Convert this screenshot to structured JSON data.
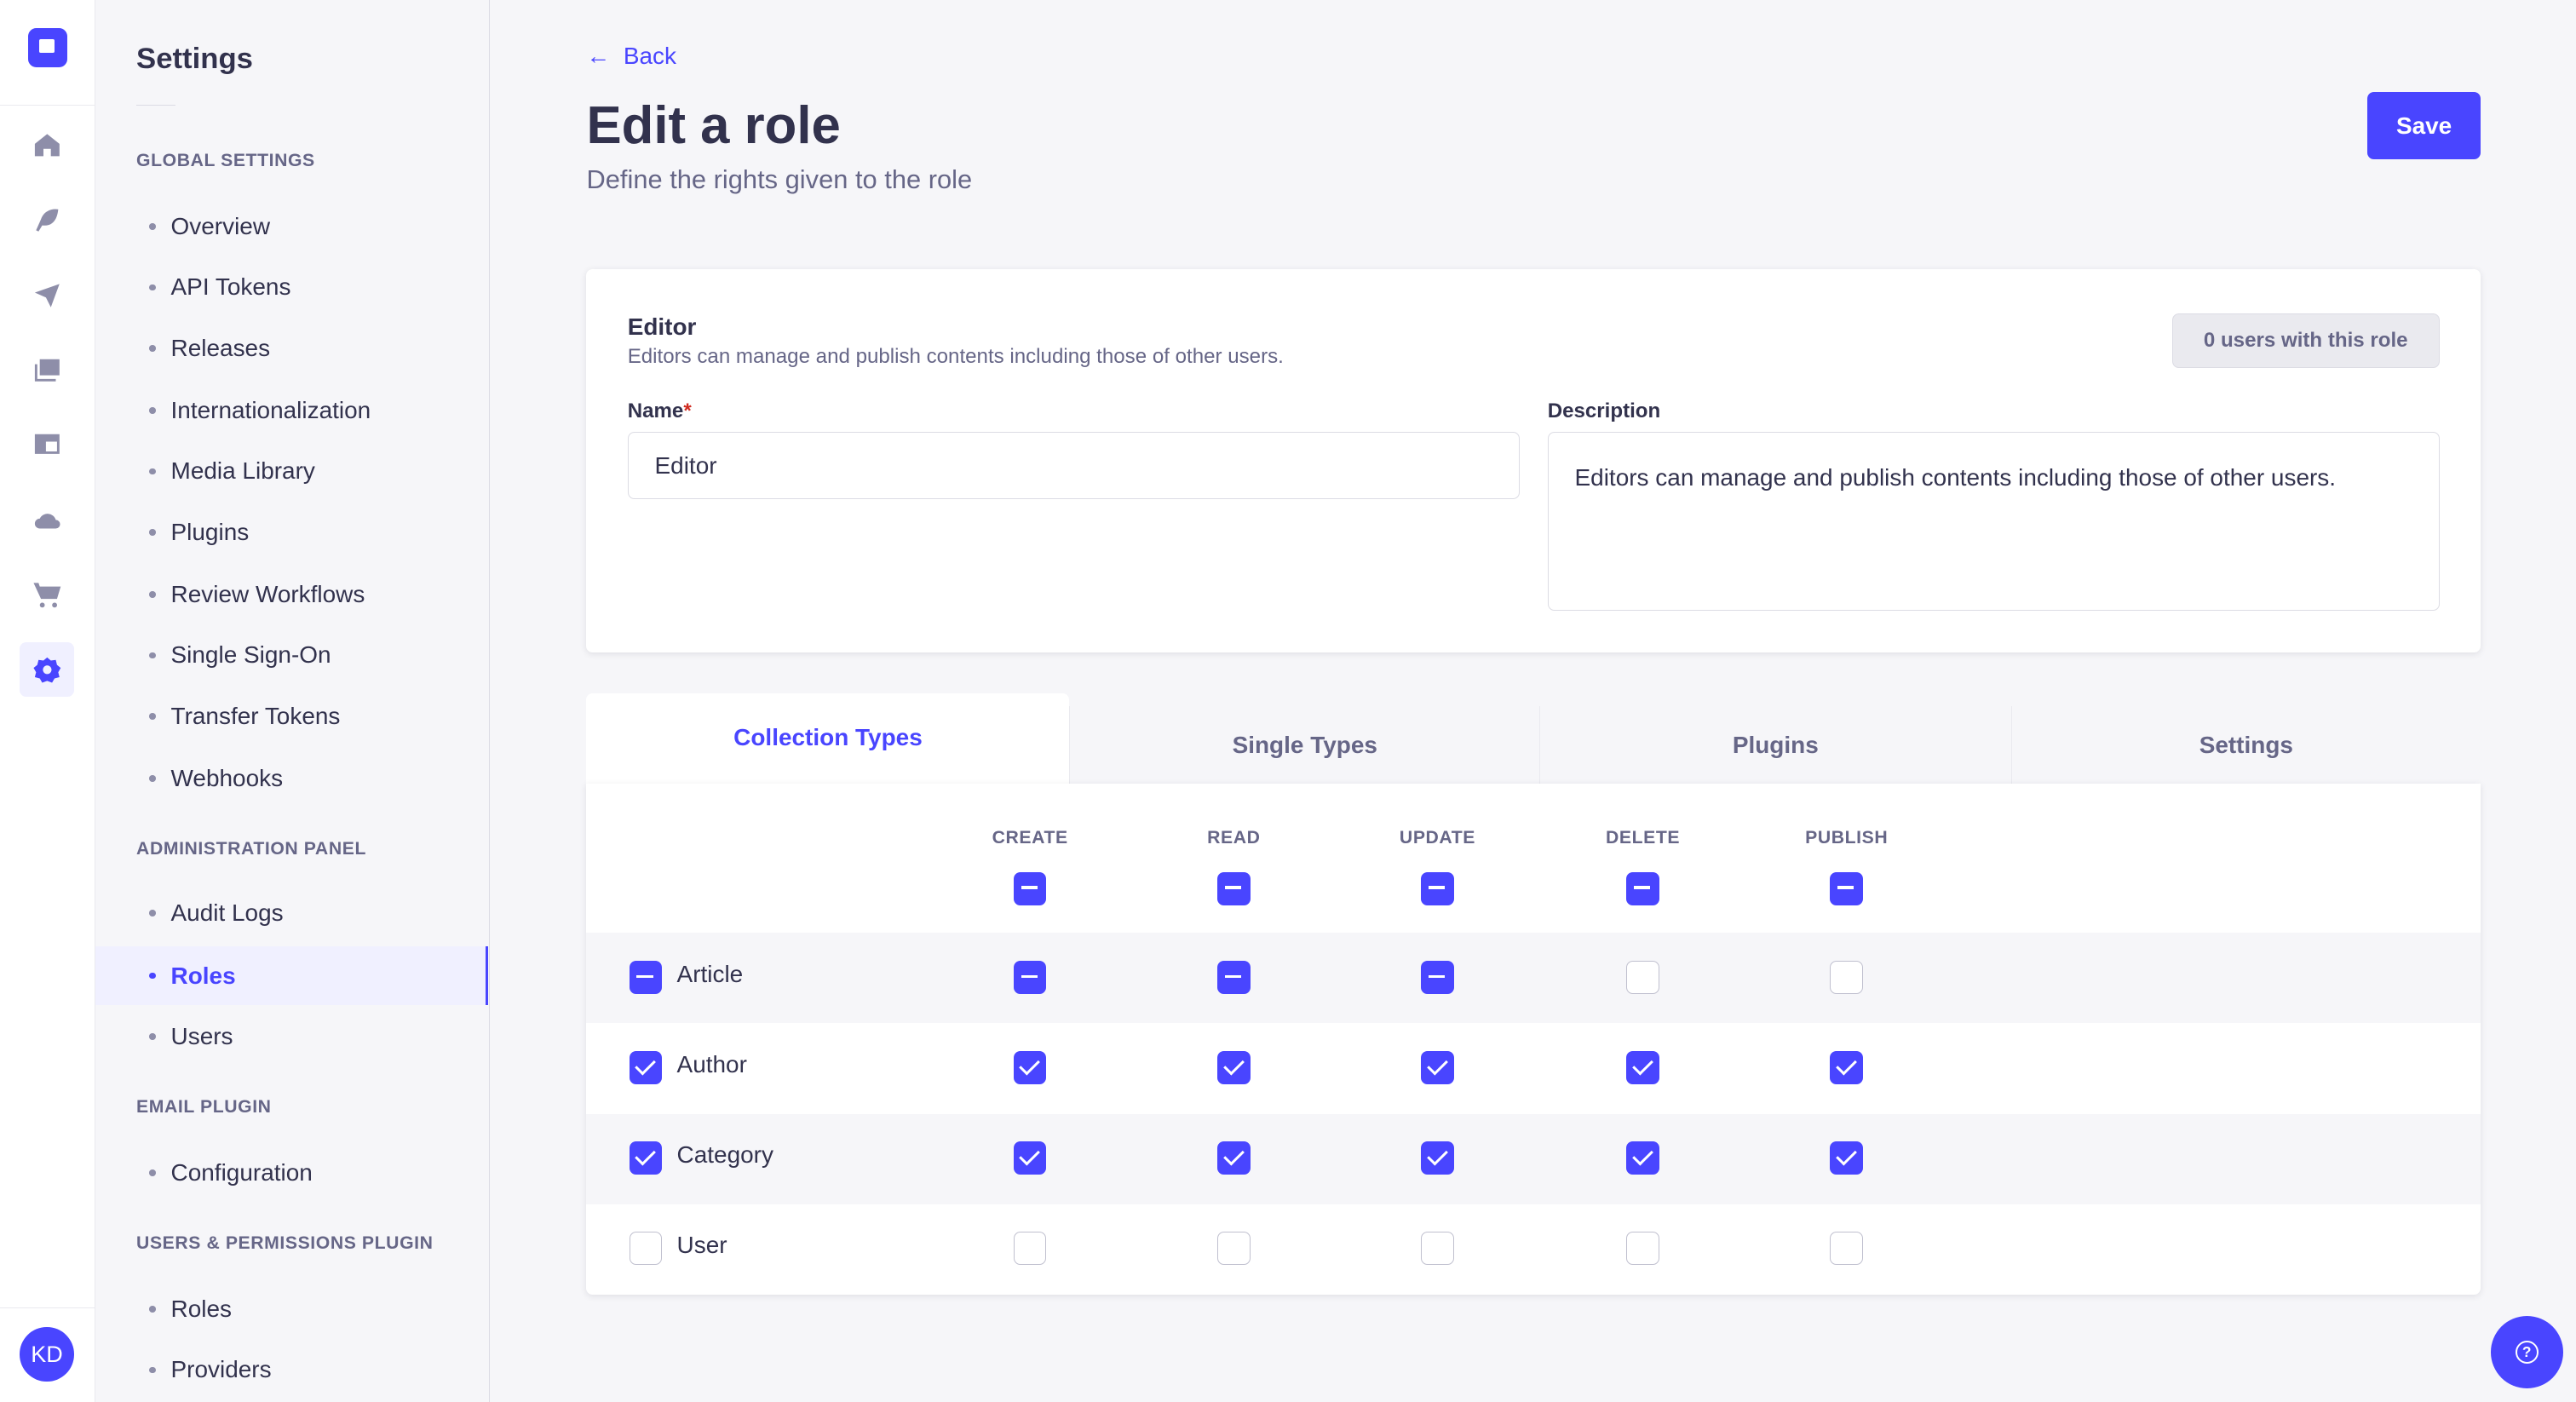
{
  "rail": {
    "icons": [
      "logo-icon",
      "home-icon",
      "feather-icon",
      "paper-plane-icon",
      "images-icon",
      "layout-icon",
      "cloud-icon",
      "cart-icon",
      "gear-icon"
    ],
    "avatar": "KD"
  },
  "sidebar": {
    "title": "Settings",
    "sections": [
      {
        "label": "Global Settings",
        "items": [
          "Overview",
          "API Tokens",
          "Releases",
          "Internationalization",
          "Media Library",
          "Plugins",
          "Review Workflows",
          "Single Sign-On",
          "Transfer Tokens",
          "Webhooks"
        ]
      },
      {
        "label": "Administration Panel",
        "items": [
          "Audit Logs",
          "Roles",
          "Users"
        ]
      },
      {
        "label": "Email Plugin",
        "items": [
          "Configuration"
        ]
      },
      {
        "label": "Users & Permissions Plugin",
        "items": [
          "Roles",
          "Providers"
        ]
      }
    ],
    "active": "Roles"
  },
  "header": {
    "back": "Back",
    "title": "Edit a role",
    "subtitle": "Define the rights given to the role",
    "save": "Save"
  },
  "role": {
    "name_heading": "Editor",
    "description_heading": "Editors can manage and publish contents including those of other users.",
    "users_badge": "0 users with this role",
    "name_label": "Name",
    "required_mark": "*",
    "name_value": "Editor",
    "description_label": "Description",
    "description_value": "Editors can manage and publish contents including those of other users."
  },
  "tabs": [
    "Collection Types",
    "Single Types",
    "Plugins",
    "Settings"
  ],
  "permissions": {
    "columns": [
      "CREATE",
      "READ",
      "UPDATE",
      "DELETE",
      "PUBLISH"
    ],
    "header_state": [
      "indeterminate",
      "indeterminate",
      "indeterminate",
      "indeterminate",
      "indeterminate"
    ],
    "rows": [
      {
        "label": "Article",
        "state": "indeterminate",
        "cells": [
          "indeterminate",
          "indeterminate",
          "indeterminate",
          "unchecked",
          "unchecked"
        ]
      },
      {
        "label": "Author",
        "state": "checked",
        "cells": [
          "checked",
          "checked",
          "checked",
          "checked",
          "checked"
        ]
      },
      {
        "label": "Category",
        "state": "checked",
        "cells": [
          "checked",
          "checked",
          "checked",
          "checked",
          "checked"
        ]
      },
      {
        "label": "User",
        "state": "unchecked",
        "cells": [
          "unchecked",
          "unchecked",
          "unchecked",
          "unchecked",
          "unchecked"
        ]
      }
    ]
  },
  "colors": {
    "accent": "#4945ff",
    "text": "#32324d",
    "muted": "#666687"
  },
  "help_icon": "question-icon"
}
